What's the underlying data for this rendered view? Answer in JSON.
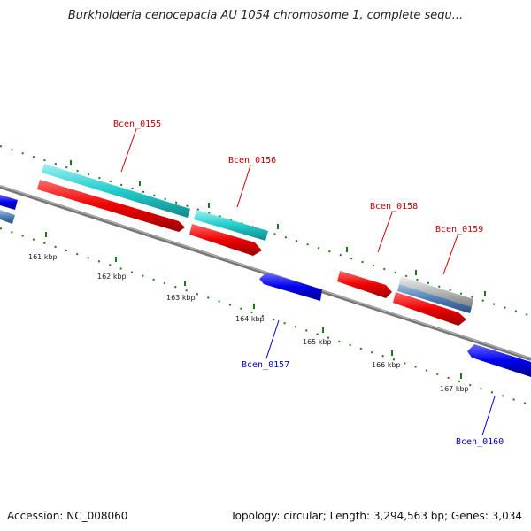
{
  "header": {
    "title": "Burkholderia cenocepacia AU 1054 chromosome 1, complete sequ..."
  },
  "footer": {
    "accession": "Accession: NC_008060",
    "topology": "Topology: circular; Length: 3,294,563 bp; Genes: 3,034"
  },
  "scale": {
    "ticks": [
      "161 kbp",
      "162 kbp",
      "163 kbp",
      "164 kbp",
      "165 kbp",
      "166 kbp",
      "167 kbp"
    ]
  },
  "genes": [
    {
      "name": "Bcen_0155",
      "color": "#cc0000"
    },
    {
      "name": "Bcen_0156",
      "color": "#cc0000"
    },
    {
      "name": "Bcen_0157",
      "color": "#0000cc"
    },
    {
      "name": "Bcen_0158",
      "color": "#cc0000"
    },
    {
      "name": "Bcen_0159",
      "color": "#cc0000"
    },
    {
      "name": "Bcen_0160",
      "color": "#0000cc"
    }
  ],
  "colors": {
    "forward_cds": "#ee1111",
    "reverse_cds": "#1010ee",
    "feature": "#33cccc",
    "backbone": "#888888",
    "dots": "#1a7a1a"
  }
}
